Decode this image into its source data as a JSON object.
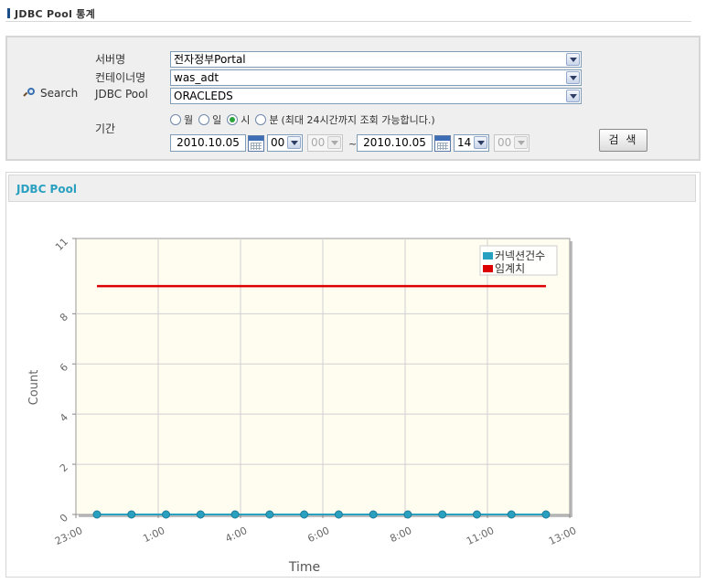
{
  "page": {
    "title": "JDBC Pool 통계"
  },
  "search": {
    "button_label": "Search",
    "server": {
      "label": "서버명",
      "value": "전자정부Portal"
    },
    "container": {
      "label": "컨테이너명",
      "value": "was_adt"
    },
    "pool": {
      "label": "JDBC Pool",
      "value": "ORACLEDS"
    },
    "period": {
      "label": "기간",
      "options": [
        "월",
        "일",
        "시",
        "분"
      ],
      "selected": "시",
      "note": "(최대 24시간까지 조회 가능합니다.)",
      "from_date": "2010.10.05",
      "from_hour": "00",
      "from_minute": "00",
      "separator": "~",
      "to_date": "2010.10.05",
      "to_hour": "14",
      "to_minute": "00"
    },
    "submit_label": "검 색"
  },
  "chart_panel": {
    "title": "JDBC Pool"
  },
  "colors": {
    "series_connections": "#2aa0c0",
    "series_threshold": "#dd0000",
    "plot_bg": "#fffcf0"
  },
  "chart_data": {
    "type": "line",
    "xlabel": "Time",
    "ylabel": "Count",
    "ylim": [
      0,
      11
    ],
    "yticks": [
      0,
      2,
      4,
      6,
      8,
      11
    ],
    "x_tick_labels": [
      "23:00",
      "1:00",
      "4:00",
      "6:00",
      "8:00",
      "11:00",
      "13:00"
    ],
    "grid": true,
    "legend": "top-right",
    "series": [
      {
        "name": "커넥션건수",
        "color": "#2aa0c0",
        "values": [
          0,
          0,
          0,
          0,
          0,
          0,
          0,
          0,
          0,
          0,
          0,
          0,
          0,
          0
        ]
      },
      {
        "name": "임계치",
        "color": "#dd0000",
        "values": [
          9.1,
          9.1,
          9.1,
          9.1,
          9.1,
          9.1,
          9.1,
          9.1,
          9.1,
          9.1,
          9.1,
          9.1,
          9.1,
          9.1
        ]
      }
    ]
  }
}
